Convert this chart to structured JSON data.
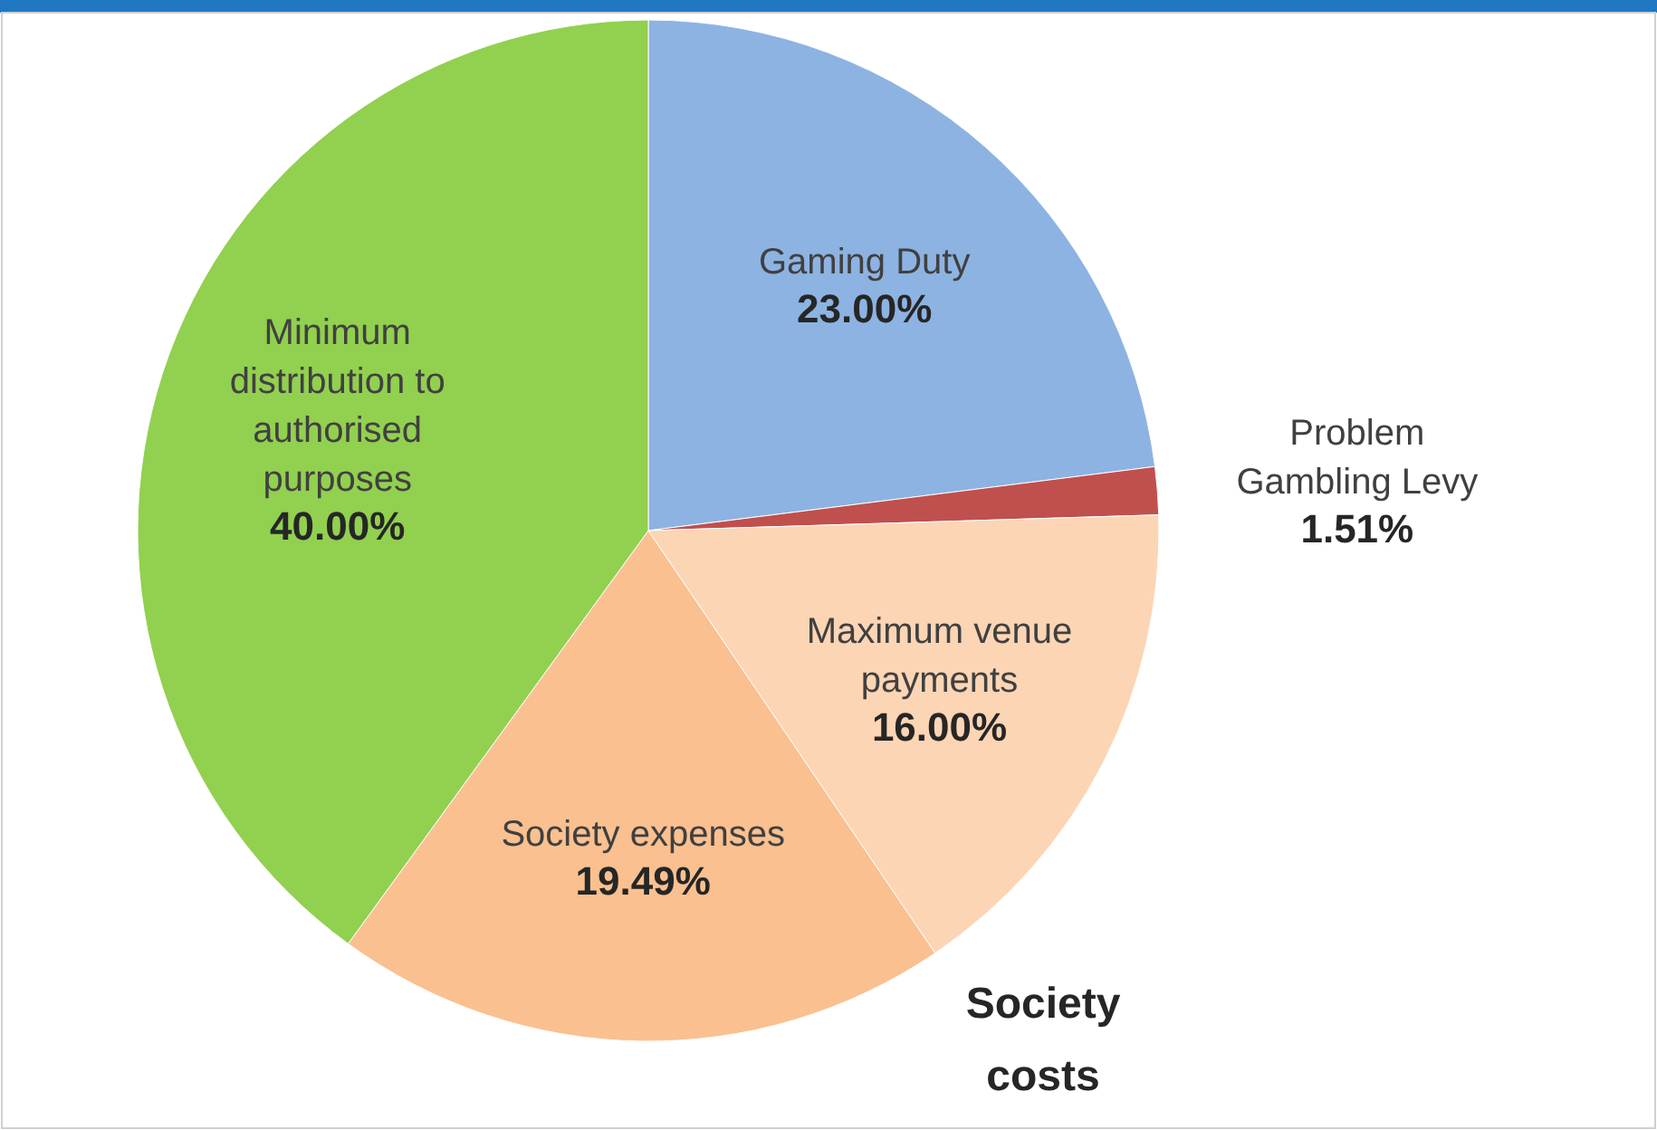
{
  "chart_data": {
    "type": "pie",
    "categories": [
      "Gaming Duty",
      "Problem Gambling Levy",
      "Maximum venue payments",
      "Society expenses",
      "Minimum distribution to authorised purposes"
    ],
    "values": [
      23,
      1.51,
      16,
      19.49,
      40
    ],
    "colors": [
      "#8db3e2",
      "#c0504d",
      "#fcd5b5",
      "#fac090",
      "#92d050"
    ],
    "value_labels": [
      "23.00%",
      "1.51%",
      "16.00%",
      "19.49%",
      "40.00%"
    ],
    "annotations": [
      {
        "text": "Society costs"
      }
    ]
  }
}
